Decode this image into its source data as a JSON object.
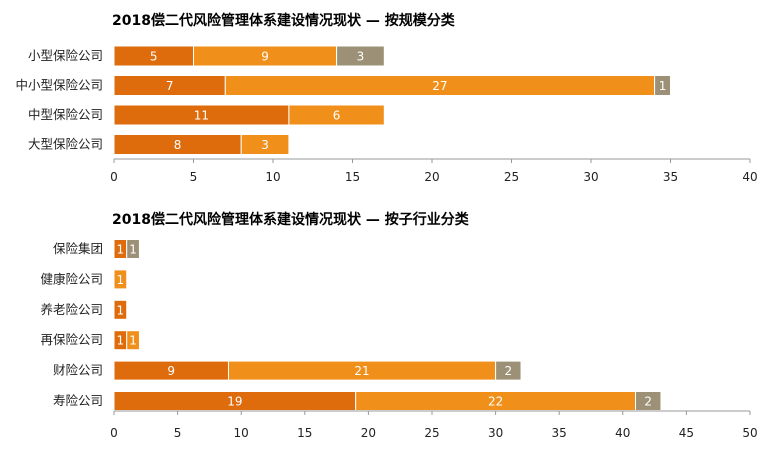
{
  "colors": {
    "series1": "#DE6B0C",
    "series2": "#F08F1A",
    "series3": "#9C9177",
    "axis": "#999999"
  },
  "chart_data": [
    {
      "type": "bar",
      "orientation": "horizontal",
      "stacked": true,
      "title": "2018偿二代风险管理体系建设情况现状 — 按规模分类",
      "categories": [
        "小型保险公司",
        "中小型保险公司",
        "中型保险公司",
        "大型保险公司"
      ],
      "series": [
        {
          "values": [
            5,
            7,
            11,
            8
          ]
        },
        {
          "values": [
            9,
            27,
            6,
            3
          ]
        },
        {
          "values": [
            3,
            1,
            0,
            0
          ]
        }
      ],
      "xlim": [
        0,
        40
      ],
      "xticks": [
        0,
        5,
        10,
        15,
        20,
        25,
        30,
        35,
        40
      ],
      "grid": false,
      "legend": "none"
    },
    {
      "type": "bar",
      "orientation": "horizontal",
      "stacked": true,
      "title": "2018偿二代风险管理体系建设情况现状 — 按子行业分类",
      "categories": [
        "保险集团",
        "健康险公司",
        "养老险公司",
        "再保险公司",
        "财险公司",
        "寿险公司"
      ],
      "series": [
        {
          "values": [
            1,
            0,
            1,
            1,
            9,
            19
          ]
        },
        {
          "values": [
            0,
            1,
            0,
            1,
            21,
            22
          ]
        },
        {
          "values": [
            1,
            0,
            0,
            0,
            2,
            2
          ]
        }
      ],
      "xlim": [
        0,
        50
      ],
      "xticks": [
        0,
        5,
        10,
        15,
        20,
        25,
        30,
        35,
        40,
        45,
        50
      ],
      "grid": false,
      "legend": "none"
    }
  ]
}
